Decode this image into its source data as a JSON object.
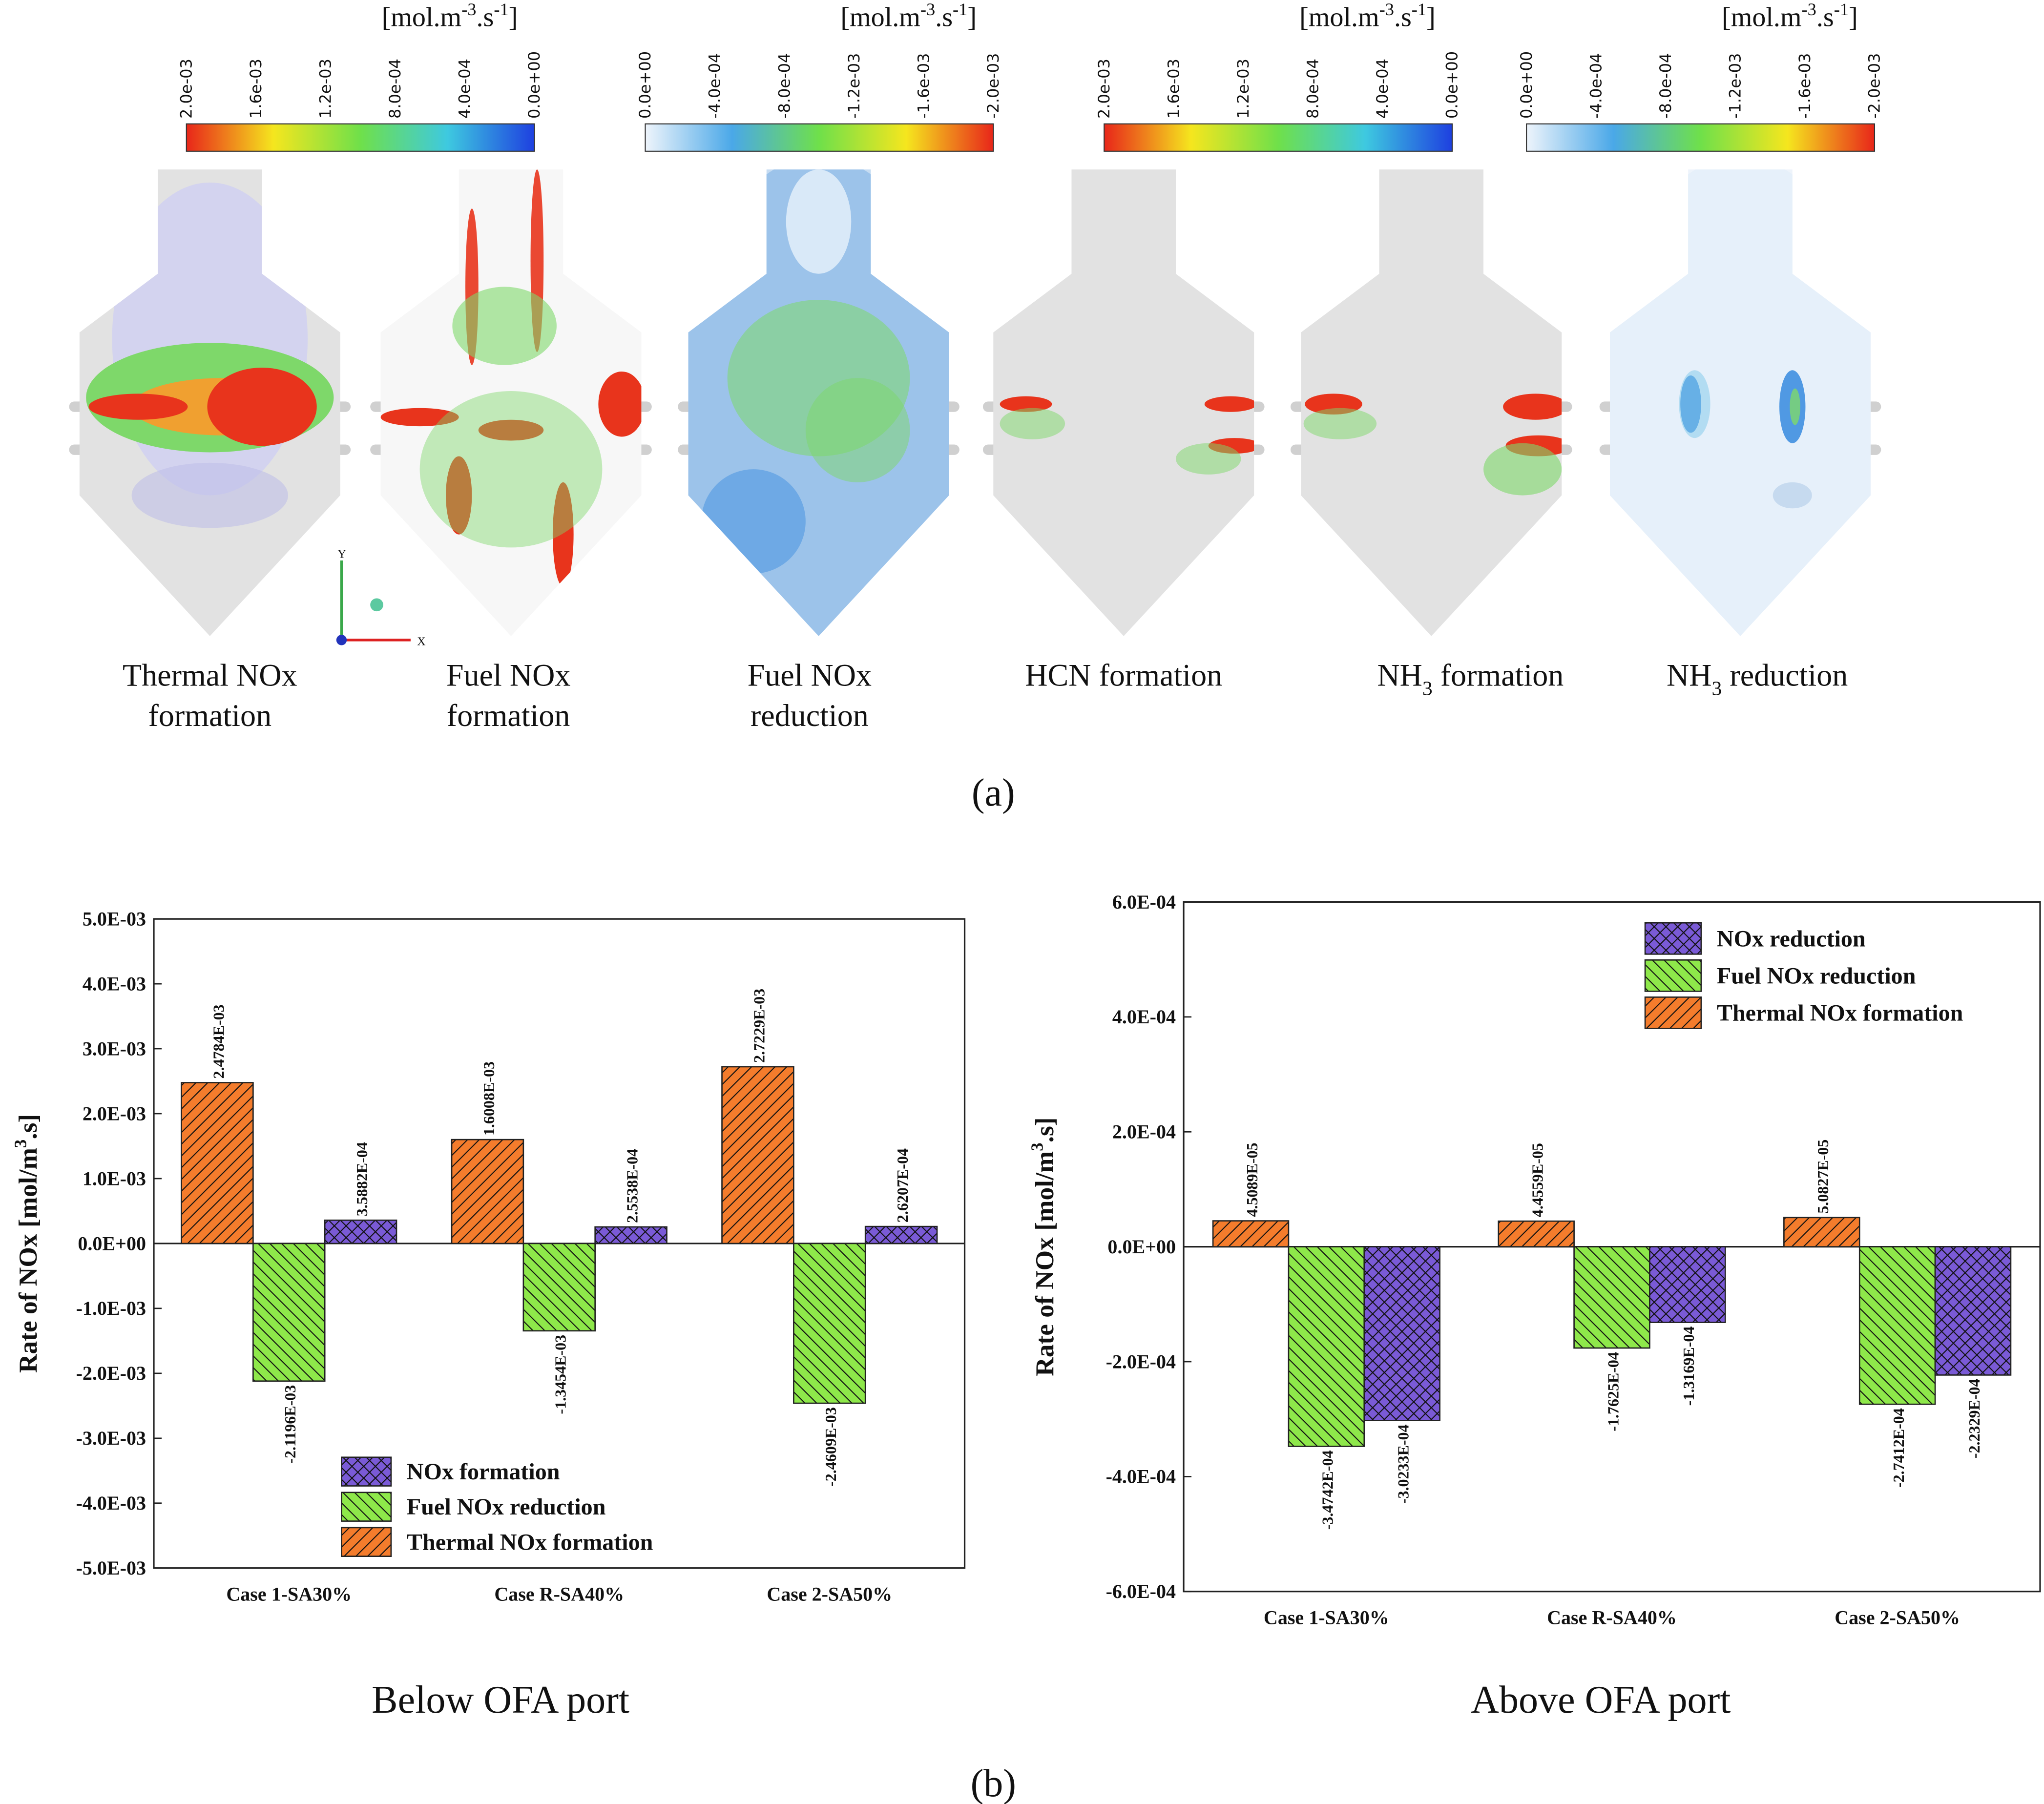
{
  "panel_a": {
    "colorbars": [
      {
        "unit_parts": [
          "[mol.m",
          "-3",
          ".s",
          "-1",
          "]"
        ],
        "ticks": [
          "2.0e-03",
          "1.6e-03",
          "1.2e-03",
          "8.0e-04",
          "4.0e-04",
          "0.0e+00"
        ],
        "colors": [
          "#e8261a",
          "#f5e61e",
          "#6fe04a",
          "#3ec9e0",
          "#1e40e0"
        ]
      },
      {
        "unit_parts": [
          "[mol.m",
          "-3",
          ".s",
          "-1",
          "]"
        ],
        "ticks": [
          "0.0e+00",
          "-4.0e-04",
          "-8.0e-04",
          "-1.2e-03",
          "-1.6e-03",
          "-2.0e-03"
        ],
        "colors": [
          "#eef4fb",
          "#4aa8e8",
          "#6fe04a",
          "#f5e61e",
          "#e8261a"
        ]
      },
      {
        "unit_parts": [
          "[mol.m",
          "-3",
          ".s",
          "-1",
          "]"
        ],
        "ticks": [
          "2.0e-03",
          "1.6e-03",
          "1.2e-03",
          "8.0e-04",
          "4.0e-04",
          "0.0e+00"
        ],
        "colors": [
          "#e8261a",
          "#f5e61e",
          "#6fe04a",
          "#3ec9e0",
          "#1e40e0"
        ]
      },
      {
        "unit_parts": [
          "[mol.m",
          "-3",
          ".s",
          "-1",
          "]"
        ],
        "ticks": [
          "0.0e+00",
          "-4.0e-04",
          "-8.0e-04",
          "-1.2e-03",
          "-1.6e-03",
          "-2.0e-03"
        ],
        "colors": [
          "#eef4fb",
          "#4aa8e8",
          "#6fe04a",
          "#f5e61e",
          "#e8261a"
        ]
      }
    ],
    "contours": [
      {
        "label_lines": [
          [
            "Thermal NOx"
          ],
          [
            "formation"
          ]
        ]
      },
      {
        "label_lines": [
          [
            "Fuel NOx"
          ],
          [
            "formation"
          ]
        ]
      },
      {
        "label_lines": [
          [
            "Fuel NOx"
          ],
          [
            "reduction"
          ]
        ]
      },
      {
        "label_lines": [
          [
            "HCN formation"
          ]
        ]
      },
      {
        "label_lines": [
          [
            "NH",
            "3",
            " formation"
          ]
        ]
      },
      {
        "label_lines": [
          [
            "NH",
            "3",
            " reduction"
          ]
        ]
      }
    ],
    "triad": {
      "y": "Y",
      "x": "X"
    },
    "panel_label": "(a)"
  },
  "chart_data": [
    {
      "type": "bar",
      "caption": "Below OFA port",
      "ylabel_parts": [
        "Rate of NOx [mol/m",
        "3",
        ".s]"
      ],
      "categories": [
        "Case 1-SA30%",
        "Case R-SA40%",
        "Case 2-SA50%"
      ],
      "series": [
        {
          "name": "Thermal NOx formation",
          "color": "#f47c2c",
          "hatch": "/",
          "values": [
            0.0024784,
            0.0016008,
            0.0027229
          ],
          "value_labels": [
            "2.4784E-03",
            "1.6008E-03",
            "2.7229E-03"
          ]
        },
        {
          "name": "Fuel NOx reduction",
          "color": "#8ee84a",
          "hatch": "\\",
          "values": [
            -0.0021196,
            -0.0013454,
            -0.0024609
          ],
          "value_labels": [
            "-2.1196E-03",
            "-1.3454E-03",
            "-2.4609E-03"
          ]
        },
        {
          "name": "NOx formation",
          "color": "#7a5ad6",
          "hatch": "x",
          "values": [
            0.00035882,
            0.00025538,
            0.00026207
          ],
          "value_labels": [
            "3.5882E-04",
            "2.5538E-04",
            "2.6207E-04"
          ]
        }
      ],
      "ylim": [
        -0.005,
        0.005
      ],
      "yticks": [
        {
          "value": -0.005,
          "label": "-5.0E-03"
        },
        {
          "value": -0.004,
          "label": "-4.0E-03"
        },
        {
          "value": -0.003,
          "label": "-3.0E-03"
        },
        {
          "value": -0.002,
          "label": "-2.0E-03"
        },
        {
          "value": -0.001,
          "label": "-1.0E-03"
        },
        {
          "value": 0,
          "label": "0.0E+00"
        },
        {
          "value": 0.001,
          "label": "1.0E-03"
        },
        {
          "value": 0.002,
          "label": "2.0E-03"
        },
        {
          "value": 0.003,
          "label": "3.0E-03"
        },
        {
          "value": 0.004,
          "label": "4.0E-03"
        },
        {
          "value": 0.005,
          "label": "5.0E-03"
        }
      ],
      "grid": false,
      "legend": "lower-center"
    },
    {
      "type": "bar",
      "caption": "Above OFA port",
      "ylabel_parts": [
        "Rate of NOx [mol/m",
        "3",
        ".s]"
      ],
      "categories": [
        "Case 1-SA30%",
        "Case R-SA40%",
        "Case 2-SA50%"
      ],
      "series": [
        {
          "name": "Thermal NOx formation",
          "color": "#f47c2c",
          "hatch": "/",
          "values": [
            4.5089e-05,
            4.4559e-05,
            5.0827e-05
          ],
          "value_labels": [
            "4.5089E-05",
            "4.4559E-05",
            "5.0827E-05"
          ]
        },
        {
          "name": "Fuel NOx reduction",
          "color": "#8ee84a",
          "hatch": "\\",
          "values": [
            -0.00034742,
            -0.00017625,
            -0.00027412
          ],
          "value_labels": [
            "-3.4742E-04",
            "-1.7625E-04",
            "-2.7412E-04"
          ]
        },
        {
          "name": "NOx reduction",
          "color": "#7a5ad6",
          "hatch": "x",
          "values": [
            -0.00030233,
            -0.00013169,
            -0.00022329
          ],
          "value_labels": [
            "-3.0233E-04",
            "-1.3169E-04",
            "-2.2329E-04"
          ]
        }
      ],
      "ylim": [
        -0.0006,
        0.0006
      ],
      "yticks": [
        {
          "value": -0.0006,
          "label": "-6.0E-04"
        },
        {
          "value": -0.0004,
          "label": "-4.0E-04"
        },
        {
          "value": -0.0002,
          "label": "-2.0E-04"
        },
        {
          "value": 0,
          "label": "0.0E+00"
        },
        {
          "value": 0.0002,
          "label": "2.0E-04"
        },
        {
          "value": 0.0004,
          "label": "4.0E-04"
        },
        {
          "value": 0.0006,
          "label": "6.0E-04"
        }
      ],
      "grid": false,
      "legend": "upper-right"
    }
  ],
  "panel_b_label": "(b)"
}
